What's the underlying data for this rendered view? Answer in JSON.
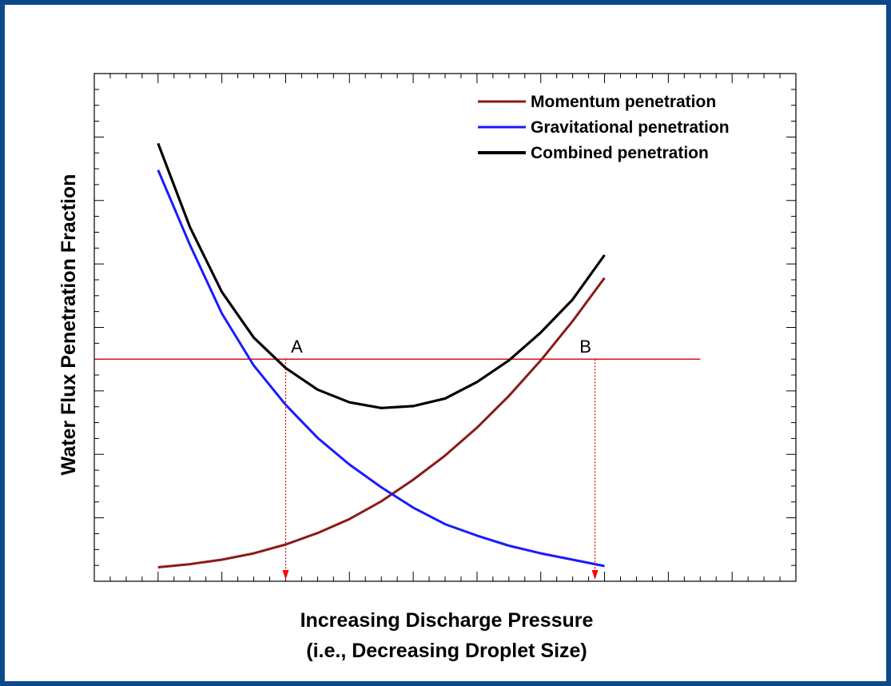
{
  "chart_data": {
    "type": "line",
    "title": "",
    "xlabel": "Increasing Discharge Pressure",
    "xlabel_line2": "(i.e., Decreasing Droplet Size)",
    "ylabel": "Water Flux Penetration Fraction",
    "xlim": [
      0,
      22
    ],
    "ylim": [
      0,
      8
    ],
    "grid": false,
    "legend_position": "top-right",
    "x": [
      2,
      3,
      4,
      5,
      6,
      7,
      8,
      9,
      10,
      11,
      12,
      13,
      14,
      15,
      16
    ],
    "series": [
      {
        "name": "Momentum penetration",
        "color": "#8b1a1a",
        "values": [
          0.22,
          0.27,
          0.34,
          0.44,
          0.58,
          0.76,
          0.98,
          1.26,
          1.6,
          1.98,
          2.42,
          2.92,
          3.48,
          4.1,
          4.78
        ]
      },
      {
        "name": "Gravitational penetration",
        "color": "#1a1aff",
        "values": [
          6.48,
          5.3,
          4.22,
          3.4,
          2.78,
          2.26,
          1.84,
          1.48,
          1.16,
          0.9,
          0.72,
          0.56,
          0.44,
          0.34,
          0.24
        ]
      },
      {
        "name": "Combined penetration",
        "color": "#000000",
        "values": [
          6.9,
          5.58,
          4.56,
          3.84,
          3.36,
          3.02,
          2.82,
          2.73,
          2.76,
          2.88,
          3.14,
          3.48,
          3.92,
          4.44,
          5.14
        ]
      }
    ],
    "threshold_y": 3.5,
    "annotations": [
      {
        "label": "A",
        "x": 6.0,
        "y": 3.5
      },
      {
        "label": "B",
        "x": 15.7,
        "y": 3.5
      }
    ]
  }
}
